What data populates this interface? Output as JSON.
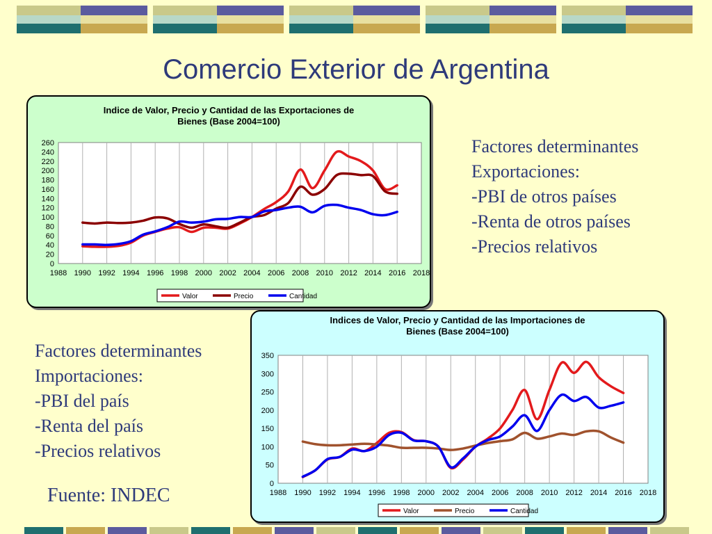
{
  "slide": {
    "title": "Comercio Exterior de Argentina",
    "source": "Fuente: INDEC"
  },
  "exports_text": [
    "Factores determinantes",
    "Exportaciones:",
    "-PBI de otros países",
    "-Renta de otros países",
    "-Precios relativos"
  ],
  "imports_text": [
    "Factores determinantes",
    "Importaciones:",
    "-PBI del país",
    "-Renta del país",
    "-Precios relativos"
  ],
  "colors": {
    "background": "#FFFFCC",
    "title_text": "#2E3A7A",
    "export_panel": "#CCFFCC",
    "import_panel": "#CCFFFF",
    "valor": "#E31A1C",
    "precio_exports": "#8B0000",
    "precio_imports": "#A0522D",
    "cantidad": "#0000EE"
  },
  "chart_data": [
    {
      "type": "line",
      "title_lines": [
        "Indice de Valor, Precio y Cantidad de las Exportaciones de",
        "Bienes (Base 2004=100)"
      ],
      "x_ticks": [
        1988,
        1990,
        1992,
        1994,
        1996,
        1998,
        2000,
        2002,
        2004,
        2006,
        2008,
        2010,
        2012,
        2014,
        2016,
        2018
      ],
      "y_ticks": [
        0,
        20,
        40,
        60,
        80,
        100,
        120,
        140,
        160,
        180,
        200,
        220,
        240,
        260
      ],
      "xlim": [
        1988,
        2018
      ],
      "ylim": [
        0,
        260
      ],
      "grid": "vertical",
      "legend": "bottom",
      "x": [
        1990,
        1991,
        1992,
        1993,
        1994,
        1995,
        1996,
        1997,
        1998,
        1999,
        2000,
        2001,
        2002,
        2003,
        2004,
        2005,
        2006,
        2007,
        2008,
        2009,
        2010,
        2011,
        2012,
        2013,
        2014,
        2015,
        2016
      ],
      "series": [
        {
          "name": "Valor",
          "color": "#E31A1C",
          "values": [
            37,
            36,
            36,
            38,
            45,
            60,
            68,
            75,
            78,
            68,
            77,
            77,
            75,
            86,
            100,
            117,
            132,
            155,
            202,
            162,
            200,
            240,
            230,
            220,
            200,
            160,
            168
          ]
        },
        {
          "name": "Precio",
          "color": "#8B0000",
          "values": [
            88,
            86,
            88,
            87,
            88,
            92,
            99,
            97,
            85,
            77,
            84,
            80,
            77,
            88,
            100,
            104,
            118,
            130,
            165,
            148,
            160,
            190,
            193,
            190,
            188,
            155,
            150
          ]
        },
        {
          "name": "Cantidad",
          "color": "#0000EE",
          "values": [
            41,
            41,
            40,
            42,
            48,
            62,
            69,
            78,
            90,
            88,
            90,
            95,
            96,
            100,
            100,
            112,
            115,
            120,
            122,
            110,
            124,
            126,
            120,
            115,
            106,
            104,
            111
          ]
        }
      ]
    },
    {
      "type": "line",
      "title_lines": [
        "Indices de Valor, Precio y Cantidad de las Importaciones de",
        "Bienes (Base 2004=100)"
      ],
      "x_ticks": [
        1988,
        1990,
        1992,
        1994,
        1996,
        1998,
        2000,
        2002,
        2004,
        2006,
        2008,
        2010,
        2012,
        2014,
        2016,
        2018
      ],
      "y_ticks": [
        0,
        50,
        100,
        150,
        200,
        250,
        300,
        350
      ],
      "xlim": [
        1988,
        2018
      ],
      "ylim": [
        0,
        350
      ],
      "grid": "vertical",
      "legend": "bottom",
      "x": [
        1990,
        1991,
        1992,
        1993,
        1994,
        1995,
        1996,
        1997,
        1998,
        1999,
        2000,
        2001,
        2002,
        2003,
        2004,
        2005,
        2006,
        2007,
        2008,
        2009,
        2010,
        2011,
        2012,
        2013,
        2014,
        2015,
        2016
      ],
      "series": [
        {
          "name": "Valor",
          "color": "#E31A1C",
          "values": [
            17,
            35,
            65,
            72,
            95,
            88,
            110,
            138,
            140,
            118,
            115,
            100,
            42,
            65,
            100,
            122,
            150,
            200,
            255,
            175,
            255,
            330,
            302,
            332,
            290,
            265,
            247
          ]
        },
        {
          "name": "Precio",
          "color": "#A0522D",
          "values": [
            114,
            107,
            104,
            104,
            106,
            108,
            106,
            103,
            97,
            97,
            97,
            95,
            91,
            95,
            103,
            110,
            115,
            120,
            138,
            122,
            128,
            136,
            132,
            142,
            142,
            125,
            111
          ]
        },
        {
          "name": "Cantidad",
          "color": "#0000EE",
          "values": [
            18,
            35,
            66,
            72,
            92,
            88,
            100,
            132,
            138,
            117,
            115,
            100,
            44,
            68,
            100,
            118,
            128,
            155,
            186,
            143,
            200,
            242,
            225,
            236,
            207,
            212,
            221
          ]
        }
      ]
    }
  ]
}
